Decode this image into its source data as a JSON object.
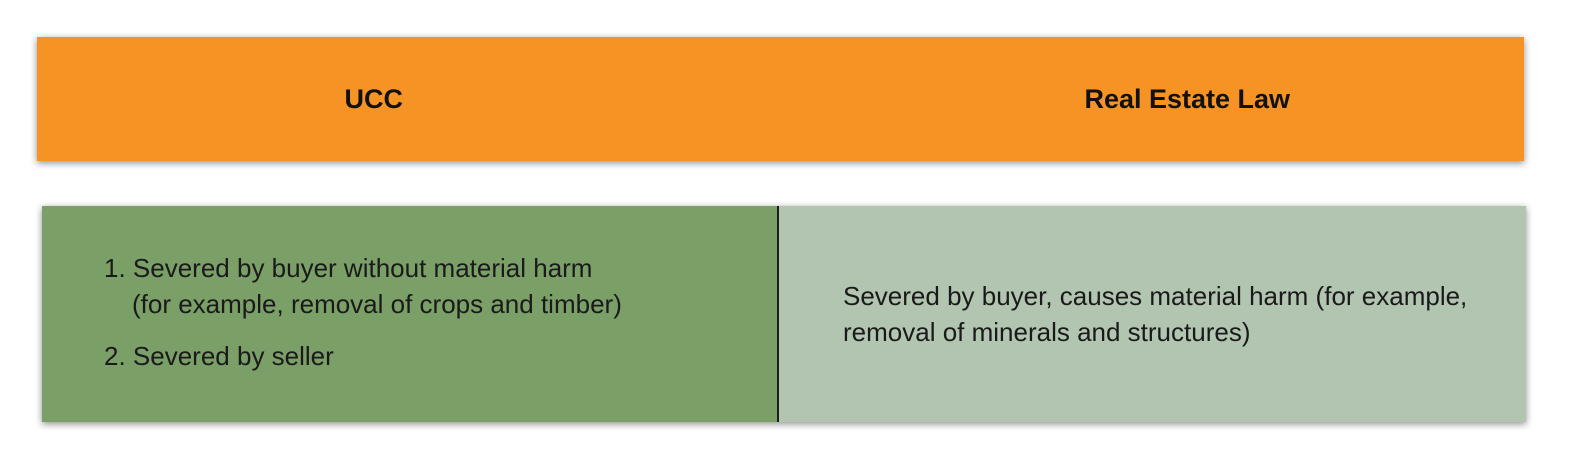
{
  "header": {
    "left_label": "UCC",
    "right_label": "Real Estate Law",
    "color": "#f59425"
  },
  "ucc": {
    "color": "#7a9f67",
    "items": [
      {
        "number": "1.",
        "line1": "Severed by buyer without material harm",
        "line2": "(for example, removal of crops and timber)"
      },
      {
        "number": "2.",
        "line1": "Severed by seller"
      }
    ]
  },
  "real_estate": {
    "color": "#b2c5b0",
    "text": "Severed by buyer, causes material harm (for example, removal of minerals and structures)"
  }
}
